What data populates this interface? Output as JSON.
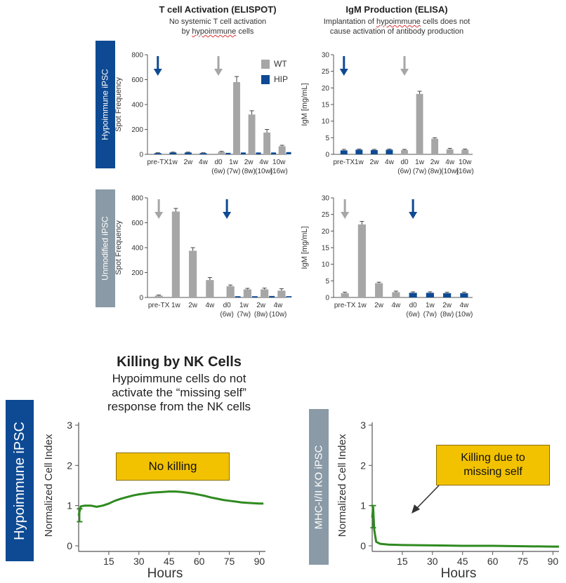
{
  "colors": {
    "wt": "#a6a6a6",
    "hip": "#0d4a93",
    "band_blue": "#0d4a93",
    "band_gray": "#8a9aa6",
    "nk_line": "#2e8a1f",
    "callout": "#f2c200"
  },
  "elispot": {
    "title": "T cell Activation (ELISPOT)",
    "subtitle_1": "No systemic T cell activation",
    "subtitle_2a": "by ",
    "subtitle_2b": "hypoimmune",
    "subtitle_2c": " cells"
  },
  "elisa": {
    "title": "IgM Production (ELISA)",
    "subtitle_1a": "Implantation of ",
    "subtitle_1b": "hypoimmune",
    "subtitle_1c": " cells does not",
    "subtitle_2": "cause activation of antibody production"
  },
  "row_labels": {
    "top": "Hypoimmune iPSC",
    "bottom": "Unmodified iPSC"
  },
  "legend": {
    "wt": "WT",
    "hip": "HIP"
  },
  "nk": {
    "title": "Killing by NK Cells",
    "subtitle_1": "Hypoimmune cells do not",
    "subtitle_2": "activate the “missing self”",
    "subtitle_3": "response from the NK cells",
    "left_label": "Hypoimmune iPSC",
    "right_label": "MHC-I/II KO iPSC",
    "callout_left": "No killing",
    "callout_right_1": "Killing due to",
    "callout_right_2": "missing self"
  },
  "chart_data": [
    {
      "id": "elispot_hip",
      "type": "bar",
      "ylabel": "Spot Frequency",
      "ylim": [
        0,
        800
      ],
      "yticks": [
        0,
        200,
        400,
        600,
        800
      ],
      "categories": [
        [
          "pre-TX",
          ""
        ],
        [
          "1w",
          ""
        ],
        [
          "2w",
          ""
        ],
        [
          "4w",
          ""
        ],
        [
          "d0",
          "(6w)"
        ],
        [
          "1w",
          "(7w)"
        ],
        [
          "2w",
          "(8w)"
        ],
        [
          "4w",
          "(10w)"
        ],
        [
          "10w",
          "(16w)"
        ]
      ],
      "colors": [
        "hip",
        "hip",
        "hip",
        "hip",
        "wt",
        "wt",
        "wt",
        "wt",
        "wt"
      ],
      "values": [
        10,
        15,
        15,
        10,
        20,
        580,
        320,
        175,
        65
      ],
      "errors": [
        3,
        3,
        3,
        3,
        4,
        45,
        30,
        25,
        8
      ],
      "extra_bars": [
        null,
        null,
        null,
        null,
        12,
        15,
        15,
        15,
        18
      ],
      "extra_colors": [
        null,
        null,
        null,
        null,
        "hip",
        "hip",
        "hip",
        "hip",
        "hip"
      ],
      "arrows": [
        {
          "at": 0,
          "color": "hip"
        },
        {
          "at": 4,
          "color": "wt"
        }
      ],
      "legend": "top-right"
    },
    {
      "id": "elisa_hip",
      "type": "bar",
      "ylabel": "IgM [mg/mL]",
      "ylim": [
        0,
        30
      ],
      "yticks": [
        0,
        5,
        10,
        15,
        20,
        25,
        30
      ],
      "categories": [
        [
          "pre-TX",
          ""
        ],
        [
          "1w",
          ""
        ],
        [
          "2w",
          ""
        ],
        [
          "4w",
          ""
        ],
        [
          "d0",
          "(6w)"
        ],
        [
          "1w",
          "(7w)"
        ],
        [
          "2w",
          "(8w)"
        ],
        [
          "4w",
          "(10w)"
        ],
        [
          "10w",
          "(16w)"
        ]
      ],
      "colors": [
        "hip",
        "hip",
        "hip",
        "hip",
        "wt",
        "wt",
        "wt",
        "wt",
        "wt"
      ],
      "values": [
        1.2,
        1.4,
        1.3,
        1.4,
        1.3,
        18.2,
        4.7,
        1.5,
        1.4
      ],
      "errors": [
        0.3,
        0.2,
        0.2,
        0.2,
        0.2,
        0.8,
        0.3,
        0.3,
        0.2
      ],
      "arrows": [
        {
          "at": 0,
          "color": "hip"
        },
        {
          "at": 4,
          "color": "wt"
        }
      ]
    },
    {
      "id": "elispot_unmod",
      "type": "bar",
      "ylabel": "Spot Frequency",
      "ylim": [
        0,
        800
      ],
      "yticks": [
        0,
        200,
        400,
        600,
        800
      ],
      "categories": [
        [
          "pre-TX",
          ""
        ],
        [
          "1w",
          ""
        ],
        [
          "2w",
          ""
        ],
        [
          "4w",
          ""
        ],
        [
          "d0",
          "(6w)"
        ],
        [
          "1w",
          "(7w)"
        ],
        [
          "2w",
          "(8w)"
        ],
        [
          "4w",
          "(10w)"
        ]
      ],
      "colors": [
        "wt",
        "wt",
        "wt",
        "wt",
        "wt",
        "wt",
        "wt",
        "wt"
      ],
      "values": [
        15,
        690,
        375,
        140,
        90,
        65,
        65,
        55
      ],
      "errors": [
        5,
        25,
        25,
        20,
        10,
        8,
        10,
        15
      ],
      "extra_bars": [
        null,
        null,
        null,
        null,
        10,
        10,
        12,
        10
      ],
      "extra_colors": [
        null,
        null,
        null,
        null,
        "hip",
        "hip",
        "hip",
        "hip"
      ],
      "arrows": [
        {
          "at": 0,
          "color": "wt"
        },
        {
          "at": 4,
          "color": "hip"
        }
      ]
    },
    {
      "id": "elisa_unmod",
      "type": "bar",
      "ylabel": "IgM [mg/mL]",
      "ylim": [
        0,
        30
      ],
      "yticks": [
        0,
        5,
        10,
        15,
        20,
        25,
        30
      ],
      "categories": [
        [
          "pre-TX",
          ""
        ],
        [
          "1w",
          ""
        ],
        [
          "2w",
          ""
        ],
        [
          "4w",
          ""
        ],
        [
          "d0",
          "(6w)"
        ],
        [
          "1w",
          "(7w)"
        ],
        [
          "2w",
          "(8w)"
        ],
        [
          "4w",
          "(10w)"
        ]
      ],
      "colors": [
        "wt",
        "wt",
        "wt",
        "wt",
        "hip",
        "hip",
        "hip",
        "hip"
      ],
      "values": [
        1.3,
        22,
        4.3,
        1.6,
        1.4,
        1.4,
        1.3,
        1.3
      ],
      "errors": [
        0.3,
        0.9,
        0.3,
        0.3,
        0.3,
        0.3,
        0.3,
        0.3
      ],
      "arrows": [
        {
          "at": 0,
          "color": "wt"
        },
        {
          "at": 4,
          "color": "hip"
        }
      ]
    },
    {
      "id": "nk_hip",
      "type": "line",
      "xlabel": "Hours",
      "ylabel": "Normalized Cell Index",
      "xlim": [
        0,
        93
      ],
      "ylim": [
        0,
        3
      ],
      "xticks": [
        15,
        30,
        45,
        60,
        75,
        90
      ],
      "yticks": [
        0,
        1,
        2,
        3
      ],
      "x": [
        0,
        1,
        3,
        6,
        9,
        12,
        15,
        18,
        21,
        24,
        27,
        30,
        33,
        36,
        39,
        42,
        45,
        48,
        51,
        54,
        57,
        60,
        63,
        66,
        69,
        72,
        75,
        78,
        81,
        84,
        87,
        90,
        92
      ],
      "y": [
        0.75,
        0.98,
        1.0,
        1.0,
        0.97,
        1.0,
        1.05,
        1.12,
        1.17,
        1.21,
        1.25,
        1.28,
        1.3,
        1.32,
        1.33,
        1.34,
        1.35,
        1.35,
        1.34,
        1.32,
        1.3,
        1.27,
        1.24,
        1.2,
        1.17,
        1.14,
        1.12,
        1.1,
        1.08,
        1.07,
        1.06,
        1.05,
        1.05
      ],
      "error_at_start": [
        0.6,
        0.92
      ]
    },
    {
      "id": "nk_ko",
      "type": "line",
      "xlabel": "Hours",
      "ylabel": "Normalized Cell Index",
      "xlim": [
        0,
        93
      ],
      "ylim": [
        0,
        3
      ],
      "xticks": [
        15,
        30,
        45,
        60,
        75,
        90
      ],
      "yticks": [
        0,
        1,
        2,
        3
      ],
      "x": [
        0,
        0.5,
        1,
        2,
        4,
        8,
        15,
        30,
        45,
        60,
        75,
        90,
        93
      ],
      "y": [
        0.7,
        0.95,
        0.4,
        0.1,
        0.05,
        0.03,
        0.02,
        0.01,
        0.0,
        0.0,
        -0.01,
        -0.02,
        -0.02
      ],
      "error_at_start": [
        0.45,
        1.0
      ]
    }
  ]
}
